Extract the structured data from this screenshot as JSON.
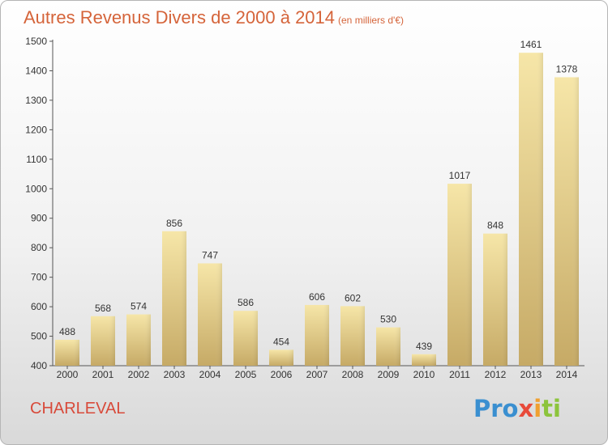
{
  "title": "Autres Revenus Divers de 2000 à 2014",
  "subtitle": "(en milliers d'€)",
  "city": "CHARLEVAL",
  "logo": {
    "p1": "Pro",
    "p2": "x",
    "p3": "i",
    "p4": "ti"
  },
  "colors": {
    "bar_top": "#f4e3a6",
    "bar_bottom": "#c9ae6a",
    "title": "#d5643a",
    "city": "#d84a3a"
  },
  "chart_data": {
    "type": "bar",
    "categories": [
      "2000",
      "2001",
      "2002",
      "2003",
      "2004",
      "2005",
      "2006",
      "2007",
      "2008",
      "2009",
      "2010",
      "2011",
      "2012",
      "2013",
      "2014"
    ],
    "values": [
      488,
      568,
      574,
      856,
      747,
      586,
      454,
      606,
      602,
      530,
      439,
      1017,
      848,
      1461,
      1378
    ],
    "ylim": [
      400,
      1500
    ],
    "yticks": [
      400,
      500,
      600,
      700,
      800,
      900,
      1000,
      1100,
      1200,
      1300,
      1400,
      1500
    ],
    "grid": false,
    "legend": "none"
  }
}
